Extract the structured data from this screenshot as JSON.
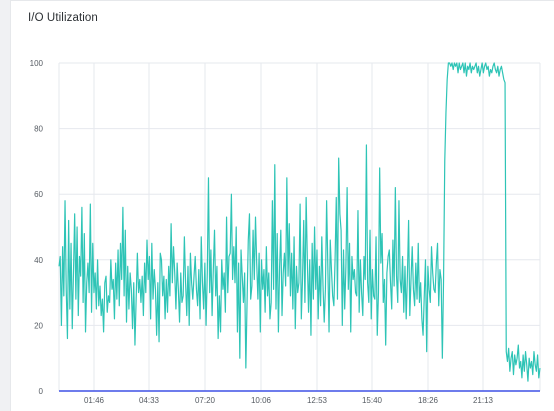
{
  "panel": {
    "title": "I/O Utilization"
  },
  "colors": {
    "series": "#2ec4b6",
    "grid": "#e6e8ee",
    "baseline": "#3f51e6",
    "text": "#555b62"
  },
  "chart_data": {
    "type": "line",
    "title": "I/O Utilization",
    "xlabel": "",
    "ylabel": "",
    "ylim": [
      0,
      100
    ],
    "y_ticks": [
      0,
      20,
      40,
      60,
      80,
      100
    ],
    "x_tick_labels": [
      "01:46",
      "04:33",
      "07:20",
      "10:06",
      "12:53",
      "15:40",
      "18:26",
      "21:13"
    ],
    "grid": true,
    "series": [
      {
        "name": "",
        "values": [
          38,
          41,
          20,
          44,
          29,
          58,
          31,
          16,
          52,
          25,
          45,
          19,
          36,
          54,
          28,
          50,
          23,
          41,
          35,
          56,
          27,
          48,
          18,
          33,
          39,
          30,
          57,
          24,
          45,
          30,
          36,
          25,
          40,
          26,
          32,
          23,
          28,
          18,
          33,
          35,
          24,
          29,
          27,
          40,
          31,
          34,
          22,
          39,
          28,
          43,
          26,
          45,
          34,
          56,
          29,
          49,
          21,
          38,
          25,
          36,
          31,
          19,
          33,
          14,
          28,
          42,
          30,
          34,
          27,
          35,
          23,
          39,
          30,
          46,
          34,
          41,
          22,
          45,
          28,
          37,
          31,
          17,
          33,
          15,
          42,
          40,
          29,
          35,
          22,
          34,
          24,
          38,
          29,
          51,
          33,
          44,
          36,
          25,
          39,
          31,
          21,
          36,
          27,
          29,
          47,
          33,
          23,
          38,
          20,
          42,
          33,
          28,
          35,
          41,
          31,
          26,
          37,
          22,
          47,
          33,
          25,
          39,
          20,
          36,
          65,
          30,
          43,
          23,
          37,
          49,
          29,
          38,
          16,
          29,
          18,
          40,
          31,
          36,
          24,
          53,
          30,
          41,
          42,
          60,
          34,
          44,
          33,
          50,
          18,
          39,
          10,
          43,
          35,
          27,
          36,
          7,
          27,
          46,
          54,
          28,
          32,
          49,
          34,
          53,
          39,
          28,
          42,
          18,
          40,
          31,
          37,
          24,
          44,
          29,
          36,
          22,
          27,
          58,
          31,
          69,
          25,
          48,
          18,
          38,
          49,
          23,
          36,
          42,
          32,
          65,
          35,
          51,
          29,
          42,
          25,
          47,
          19,
          38,
          30,
          33,
          57,
          22,
          34,
          52,
          27,
          59,
          40,
          24,
          40,
          17,
          45,
          28,
          50,
          31,
          43,
          22,
          38,
          26,
          47,
          32,
          21,
          31,
          58,
          38,
          18,
          46,
          37,
          29,
          26,
          40,
          59,
          28,
          71,
          54,
          49,
          20,
          43,
          25,
          38,
          62,
          31,
          45,
          18,
          41,
          34,
          37,
          30,
          29,
          55,
          24,
          40,
          30,
          23,
          41,
          34,
          75,
          33,
          27,
          49,
          22,
          37,
          29,
          28,
          47,
          17,
          30,
          68,
          39,
          48,
          27,
          34,
          14,
          36,
          41,
          43,
          33,
          25,
          46,
          32,
          62,
          35,
          27,
          58,
          34,
          30,
          41,
          24,
          38,
          22,
          35,
          52,
          23,
          34,
          44,
          31,
          26,
          39,
          28,
          45,
          27,
          33,
          22,
          17,
          29,
          40,
          12,
          38,
          31,
          27,
          44,
          36,
          31,
          30,
          39,
          45,
          26,
          37,
          34,
          10,
          34,
          70,
          85,
          95,
          100,
          100,
          99,
          100,
          98,
          100,
          99,
          100,
          97,
          100,
          98,
          99,
          100,
          97,
          100,
          96,
          99,
          98,
          100,
          97,
          99,
          98,
          99,
          100,
          97,
          99,
          96,
          98,
          100,
          97,
          99,
          100,
          98,
          99,
          96,
          98,
          97,
          99,
          100,
          98,
          97,
          99,
          96,
          98,
          99,
          97,
          95,
          94,
          12,
          9,
          13,
          6,
          10,
          12,
          5,
          11,
          8,
          10,
          14,
          7,
          9,
          4,
          11,
          6,
          12,
          8,
          3,
          10,
          7,
          9,
          5,
          12,
          8,
          6,
          11,
          4,
          7
        ]
      }
    ]
  }
}
